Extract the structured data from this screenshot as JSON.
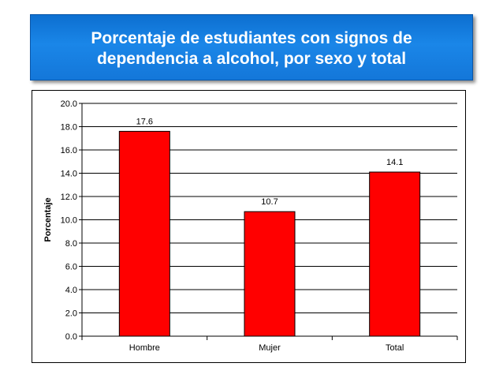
{
  "title": {
    "line1": "Porcentaje de estudiantes con signos de",
    "line2": "dependencia a alcohol, por sexo y total"
  },
  "colors": {
    "banner": "#1a86e8",
    "bar": "#ff0000",
    "bar_border": "#000000"
  },
  "chart_data": {
    "type": "bar",
    "title": "Porcentaje de estudiantes con signos de dependencia a alcohol, por sexo y total",
    "categories": [
      "Hombre",
      "Mujer",
      "Total"
    ],
    "values": [
      17.6,
      10.7,
      14.1
    ],
    "value_labels": [
      "17.6",
      "10.7",
      "14.1"
    ],
    "ylabel": "Porcentaje",
    "xlabel": "",
    "ylim": [
      0,
      20
    ],
    "yticks": [
      "0.0",
      "2.0",
      "4.0",
      "6.0",
      "8.0",
      "10.0",
      "12.0",
      "14.0",
      "16.0",
      "18.0",
      "20.0"
    ],
    "grid": true,
    "legend": "none"
  }
}
